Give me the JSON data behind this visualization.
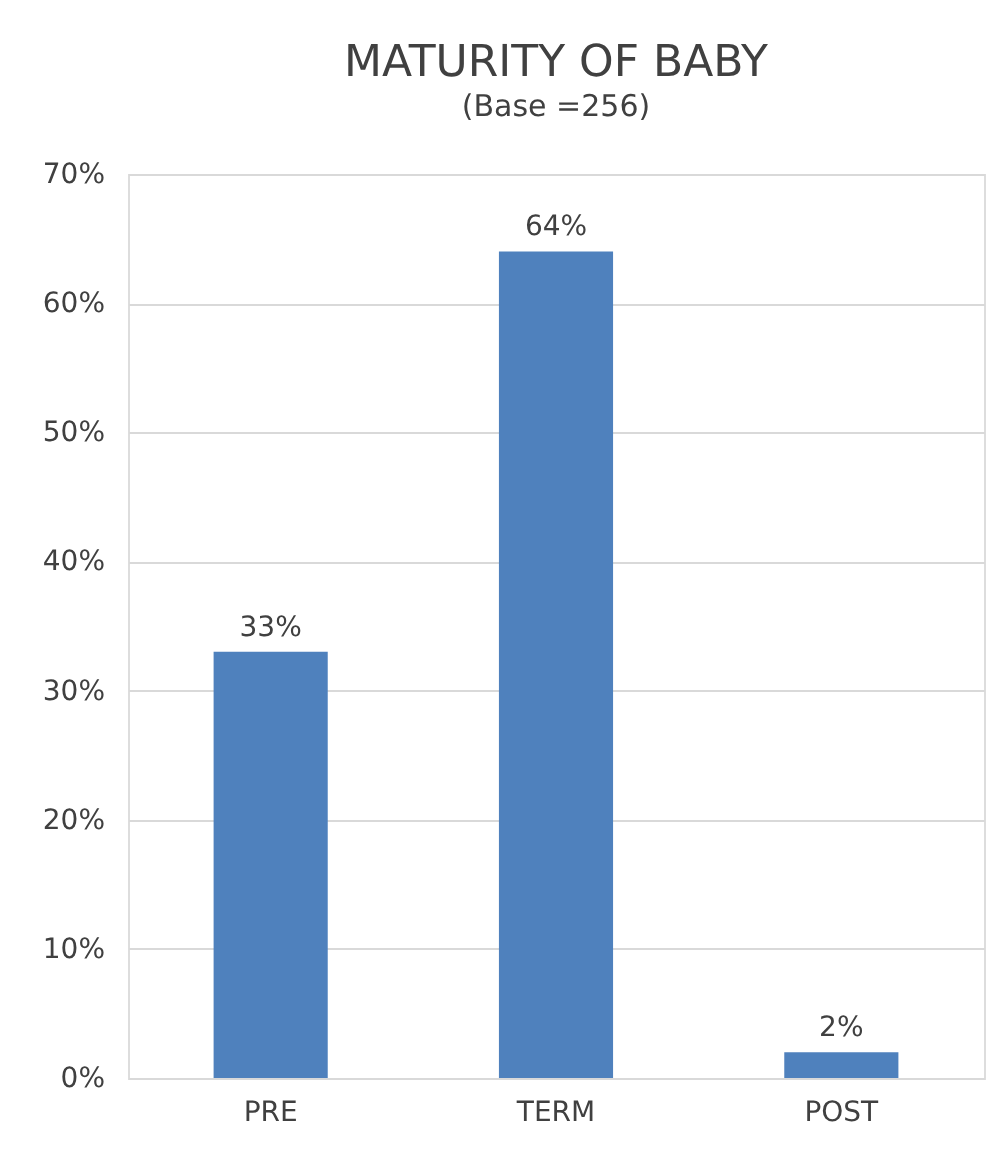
{
  "chart_data": {
    "type": "bar",
    "title": "MATURITY OF BABY",
    "subtitle": "(Base =256)",
    "categories": [
      "PRE",
      "TERM",
      "POST"
    ],
    "values": [
      33,
      64,
      2
    ],
    "value_labels": [
      "33%",
      "64%",
      "2%"
    ],
    "color": "#4f81bd",
    "ylim": [
      0,
      70
    ],
    "yticks": [
      {
        "value": 0,
        "label": "0%"
      },
      {
        "value": 10,
        "label": "10%"
      },
      {
        "value": 20,
        "label": "20%"
      },
      {
        "value": 30,
        "label": "30%"
      },
      {
        "value": 40,
        "label": "40%"
      },
      {
        "value": 50,
        "label": "50%"
      },
      {
        "value": 60,
        "label": "60%"
      },
      {
        "value": 70,
        "label": "70%"
      }
    ],
    "grid": "y"
  }
}
